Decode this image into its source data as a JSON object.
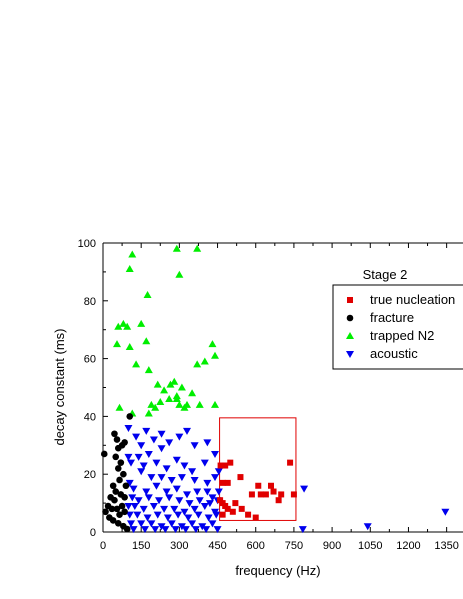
{
  "chart_data": {
    "type": "scatter",
    "xlabel": "frequency (Hz)",
    "ylabel": "decay constant (ms)",
    "xlim": [
      0,
      1375
    ],
    "ylim": [
      0,
      100
    ],
    "x_ticks": [
      "0",
      "150",
      "300",
      "450",
      "600",
      "750",
      "900",
      "1050",
      "1200",
      "1350"
    ],
    "y_ticks": [
      "0",
      "20",
      "40",
      "60",
      "80",
      "100"
    ],
    "legend_title": "Stage 2",
    "legend_position": "right",
    "highlight_box": {
      "x": [
        458,
        758
      ],
      "y": [
        4,
        39.5
      ],
      "color": "#e00000"
    },
    "series": [
      {
        "name": "true nucleation",
        "marker": "square",
        "color": "#e00000",
        "points": [
          [
            462,
            23
          ],
          [
            480,
            23
          ],
          [
            500,
            24
          ],
          [
            470,
            17
          ],
          [
            490,
            17
          ],
          [
            540,
            19
          ],
          [
            610,
            16
          ],
          [
            660,
            16
          ],
          [
            640,
            13
          ],
          [
            670,
            14
          ],
          [
            700,
            13
          ],
          [
            735,
            24
          ],
          [
            750,
            13
          ],
          [
            690,
            11
          ],
          [
            585,
            13
          ],
          [
            470,
            10
          ],
          [
            520,
            10
          ],
          [
            545,
            8
          ],
          [
            570,
            6
          ],
          [
            600,
            5
          ],
          [
            490,
            8
          ],
          [
            510,
            7
          ],
          [
            480,
            9
          ],
          [
            460,
            11
          ],
          [
            470,
            6
          ],
          [
            620,
            13
          ]
        ]
      },
      {
        "name": "fracture",
        "marker": "circle",
        "color": "#000000",
        "points": [
          [
            5,
            27
          ],
          [
            45,
            34
          ],
          [
            55,
            32
          ],
          [
            60,
            29
          ],
          [
            75,
            30
          ],
          [
            85,
            31
          ],
          [
            50,
            26
          ],
          [
            70,
            24
          ],
          [
            60,
            22
          ],
          [
            80,
            20
          ],
          [
            65,
            18
          ],
          [
            90,
            16
          ],
          [
            40,
            16
          ],
          [
            30,
            12
          ],
          [
            50,
            14
          ],
          [
            70,
            13
          ],
          [
            85,
            12
          ],
          [
            20,
            9
          ],
          [
            35,
            8
          ],
          [
            55,
            8
          ],
          [
            75,
            9
          ],
          [
            25,
            5
          ],
          [
            40,
            4
          ],
          [
            60,
            3
          ],
          [
            80,
            2
          ],
          [
            95,
            1
          ],
          [
            10,
            7
          ],
          [
            45,
            11
          ],
          [
            65,
            6
          ],
          [
            85,
            7
          ],
          [
            105,
            40
          ]
        ]
      },
      {
        "name": "trapped N2",
        "marker": "triangle-up",
        "color": "#00ee00",
        "points": [
          [
            115,
            96
          ],
          [
            105,
            91
          ],
          [
            290,
            98
          ],
          [
            370,
            98
          ],
          [
            300,
            89
          ],
          [
            175,
            82
          ],
          [
            60,
            71
          ],
          [
            80,
            72
          ],
          [
            95,
            71
          ],
          [
            150,
            72
          ],
          [
            55,
            65
          ],
          [
            105,
            64
          ],
          [
            170,
            66
          ],
          [
            130,
            58
          ],
          [
            180,
            56
          ],
          [
            430,
            65
          ],
          [
            440,
            61
          ],
          [
            400,
            59
          ],
          [
            370,
            58
          ],
          [
            65,
            43
          ],
          [
            115,
            41
          ],
          [
            215,
            51
          ],
          [
            265,
            51
          ],
          [
            280,
            52
          ],
          [
            310,
            50
          ],
          [
            240,
            49
          ],
          [
            260,
            46
          ],
          [
            290,
            47
          ],
          [
            330,
            44
          ],
          [
            225,
            45
          ],
          [
            205,
            43
          ],
          [
            180,
            41
          ],
          [
            190,
            44
          ],
          [
            300,
            44
          ],
          [
            320,
            43
          ],
          [
            350,
            48
          ],
          [
            380,
            44
          ],
          [
            440,
            44
          ],
          [
            290,
            46
          ]
        ]
      },
      {
        "name": "acoustic",
        "marker": "triangle-down",
        "color": "#0000ee",
        "points": [
          [
            1345,
            7
          ],
          [
            1040,
            2
          ],
          [
            790,
            15
          ],
          [
            785,
            1
          ],
          [
            100,
            36
          ],
          [
            130,
            33
          ],
          [
            150,
            30
          ],
          [
            170,
            35
          ],
          [
            200,
            32
          ],
          [
            230,
            34
          ],
          [
            260,
            31
          ],
          [
            300,
            33
          ],
          [
            330,
            35
          ],
          [
            360,
            30
          ],
          [
            410,
            31
          ],
          [
            230,
            29
          ],
          [
            180,
            27
          ],
          [
            140,
            26
          ],
          [
            100,
            26
          ],
          [
            110,
            24
          ],
          [
            160,
            23
          ],
          [
            210,
            24
          ],
          [
            250,
            22
          ],
          [
            290,
            25
          ],
          [
            320,
            23
          ],
          [
            350,
            21
          ],
          [
            400,
            24
          ],
          [
            440,
            27
          ],
          [
            150,
            21
          ],
          [
            190,
            19
          ],
          [
            230,
            19
          ],
          [
            270,
            18
          ],
          [
            310,
            19
          ],
          [
            360,
            18
          ],
          [
            410,
            17
          ],
          [
            440,
            19
          ],
          [
            455,
            21
          ],
          [
            105,
            17
          ],
          [
            120,
            15
          ],
          [
            170,
            14
          ],
          [
            210,
            16
          ],
          [
            250,
            14
          ],
          [
            290,
            15
          ],
          [
            330,
            13
          ],
          [
            370,
            14
          ],
          [
            410,
            14
          ],
          [
            430,
            12
          ],
          [
            455,
            14
          ],
          [
            115,
            12
          ],
          [
            140,
            11
          ],
          [
            180,
            12
          ],
          [
            220,
            11
          ],
          [
            260,
            12
          ],
          [
            300,
            11
          ],
          [
            340,
            10
          ],
          [
            380,
            11
          ],
          [
            420,
            10
          ],
          [
            450,
            11
          ],
          [
            100,
            9
          ],
          [
            125,
            9
          ],
          [
            160,
            8
          ],
          [
            200,
            9
          ],
          [
            240,
            8
          ],
          [
            280,
            8
          ],
          [
            320,
            7
          ],
          [
            360,
            8
          ],
          [
            400,
            9
          ],
          [
            440,
            7
          ],
          [
            105,
            6
          ],
          [
            135,
            6
          ],
          [
            175,
            5
          ],
          [
            215,
            6
          ],
          [
            255,
            5
          ],
          [
            295,
            6
          ],
          [
            335,
            5
          ],
          [
            375,
            6
          ],
          [
            415,
            5
          ],
          [
            445,
            6
          ],
          [
            110,
            3
          ],
          [
            150,
            3
          ],
          [
            190,
            3
          ],
          [
            230,
            2
          ],
          [
            270,
            3
          ],
          [
            310,
            2
          ],
          [
            350,
            3
          ],
          [
            390,
            2
          ],
          [
            430,
            3
          ],
          [
            120,
            1
          ],
          [
            165,
            1
          ],
          [
            205,
            1
          ],
          [
            245,
            1
          ],
          [
            285,
            1
          ],
          [
            325,
            1
          ],
          [
            365,
            1
          ],
          [
            405,
            1
          ],
          [
            450,
            1
          ]
        ]
      }
    ]
  }
}
